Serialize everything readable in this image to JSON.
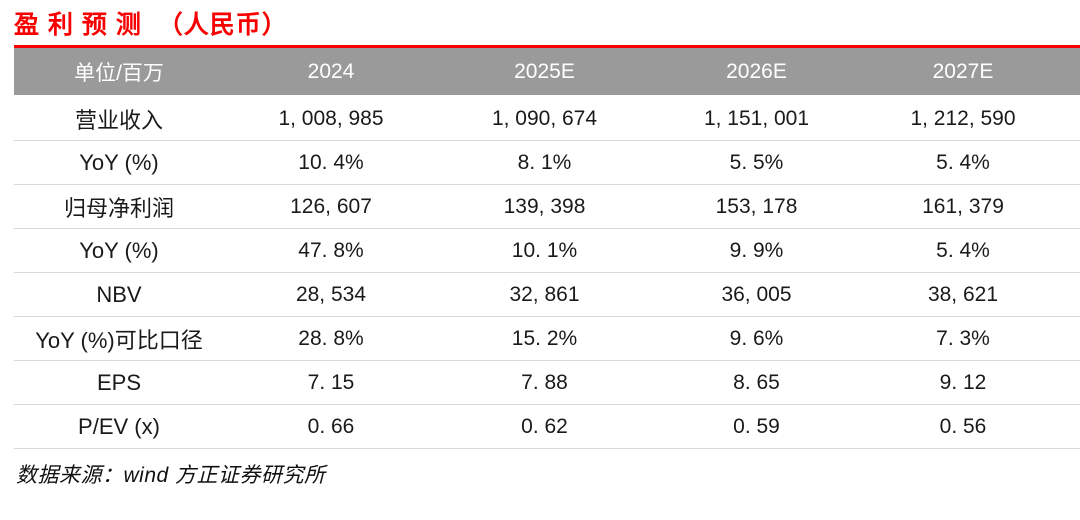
{
  "title": "盈 利 预 测  （人民币）",
  "colors": {
    "accent_red": "#f80000",
    "header_bg": "#9a9a9a",
    "header_text": "#ffffff",
    "row_divider": "#d9d9d9",
    "body_text": "#1a1a1a"
  },
  "table": {
    "header": {
      "columns": [
        "单位/百万",
        "2024",
        "2025E",
        "2026E",
        "2027E"
      ]
    },
    "rows": [
      {
        "label": "营业收入",
        "values": [
          "1, 008, 985",
          "1, 090, 674",
          "1, 151, 001",
          "1, 212, 590"
        ]
      },
      {
        "label": "YoY (%)",
        "values": [
          "10. 4%",
          "8. 1%",
          "5. 5%",
          "5. 4%"
        ]
      },
      {
        "label": "归母净利润",
        "values": [
          "126, 607",
          "139, 398",
          "153, 178",
          "161, 379"
        ]
      },
      {
        "label": "YoY (%)",
        "values": [
          "47. 8%",
          "10. 1%",
          "9. 9%",
          "5. 4%"
        ]
      },
      {
        "label": "NBV",
        "values": [
          "28, 534",
          "32, 861",
          "36, 005",
          "38, 621"
        ]
      },
      {
        "label": "YoY (%)可比口径",
        "values": [
          "28. 8%",
          "15. 2%",
          "9. 6%",
          "7. 3%"
        ]
      },
      {
        "label": "EPS",
        "values": [
          "7. 15",
          "7. 88",
          "8. 65",
          "9. 12"
        ]
      },
      {
        "label": "P/EV (x)",
        "values": [
          "0. 66",
          "0. 62",
          "0. 59",
          "0. 56"
        ]
      }
    ]
  },
  "footer": {
    "source_note": "数据来源：wind 方正证券研究所"
  }
}
